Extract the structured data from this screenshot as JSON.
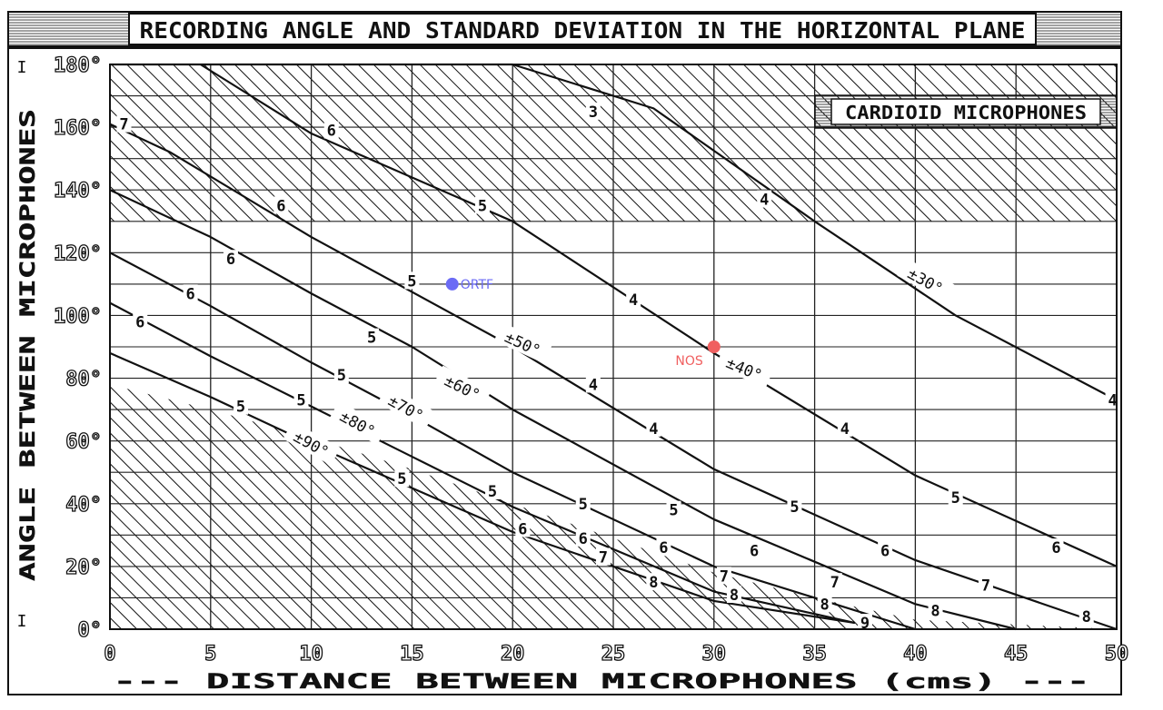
{
  "chart_data": {
    "type": "line",
    "title": "RECORDING ANGLE AND STANDARD DEVIATION IN THE HORIZONTAL PLANE",
    "subtitle": "CARDIOID MICROPHONES",
    "xlabel": "--- DISTANCE BETWEEN MICROPHONES (cms) ---",
    "ylabel": "ANGLE BETWEEN MICROPHONES",
    "xlim": [
      0,
      50
    ],
    "ylim": [
      0,
      180
    ],
    "x_ticks": [
      "0",
      "5",
      "10",
      "15",
      "20",
      "25",
      "30",
      "35",
      "40",
      "45",
      "50"
    ],
    "y_ticks": [
      "0°",
      "20°",
      "40°",
      "60°",
      "80°",
      "100°",
      "120°",
      "140°",
      "160°",
      "180°"
    ],
    "y_side_marks": [
      "I",
      "I"
    ],
    "grid": true,
    "legend_position": "top-right",
    "series": [
      {
        "name": "±30°",
        "x": [
          0,
          17,
          20,
          27,
          35,
          42,
          50
        ],
        "y": [
          180,
          180,
          180,
          166,
          130,
          100,
          73
        ]
      },
      {
        "name": "±40°",
        "x": [
          4.5,
          10,
          20,
          30,
          40,
          50
        ],
        "y": [
          180,
          158,
          130,
          88,
          49,
          20
        ]
      },
      {
        "name": "±50°",
        "x": [
          0,
          3,
          10,
          20,
          30,
          40,
          50
        ],
        "y": [
          161,
          152,
          125,
          90,
          51,
          22,
          0
        ]
      },
      {
        "name": "±60°",
        "x": [
          0,
          5,
          10,
          15,
          20,
          30,
          40,
          45
        ],
        "y": [
          140,
          125,
          107,
          90,
          70,
          35,
          8,
          0
        ]
      },
      {
        "name": "±70°",
        "x": [
          0,
          5,
          10,
          15,
          20,
          30,
          40
        ],
        "y": [
          120,
          103,
          85,
          68,
          50,
          20,
          0
        ]
      },
      {
        "name": "±80°",
        "x": [
          0,
          5,
          10,
          15,
          20,
          30,
          37
        ],
        "y": [
          104,
          87,
          71,
          55,
          39,
          12,
          2
        ]
      },
      {
        "name": "±90°",
        "x": [
          0,
          5,
          10,
          15,
          20,
          30,
          37
        ],
        "y": [
          88,
          74,
          59,
          45,
          31,
          9,
          2
        ]
      }
    ],
    "curve_labels": [
      {
        "text": "±30°",
        "x": 40.5,
        "y": 111,
        "angle": 29
      },
      {
        "text": "±40°",
        "x": 31.5,
        "y": 83,
        "angle": 23
      },
      {
        "text": "±50°",
        "x": 20.5,
        "y": 91,
        "angle": 25
      },
      {
        "text": "±60°",
        "x": 17.5,
        "y": 77,
        "angle": 27
      },
      {
        "text": "±70°",
        "x": 14.7,
        "y": 70.5,
        "angle": 29
      },
      {
        "text": "±80°",
        "x": 12.3,
        "y": 65.5,
        "angle": 29
      },
      {
        "text": "±90°",
        "x": 10,
        "y": 59,
        "angle": 29
      }
    ],
    "deviation_labels": [
      {
        "text": "3",
        "x": 24,
        "y": 165
      },
      {
        "text": "4",
        "x": 32.5,
        "y": 137
      },
      {
        "text": "4",
        "x": 26,
        "y": 105
      },
      {
        "text": "4",
        "x": 24,
        "y": 78
      },
      {
        "text": "4",
        "x": 27,
        "y": 64
      },
      {
        "text": "4",
        "x": 36.5,
        "y": 64
      },
      {
        "text": "4",
        "x": 49.8,
        "y": 73
      },
      {
        "text": "5",
        "x": 18.5,
        "y": 135
      },
      {
        "text": "5",
        "x": 15,
        "y": 111
      },
      {
        "text": "5",
        "x": 13,
        "y": 93
      },
      {
        "text": "5",
        "x": 11.5,
        "y": 81
      },
      {
        "text": "5",
        "x": 9.5,
        "y": 73
      },
      {
        "text": "5",
        "x": 6.5,
        "y": 71
      },
      {
        "text": "5",
        "x": 14.5,
        "y": 48
      },
      {
        "text": "5",
        "x": 19,
        "y": 44
      },
      {
        "text": "5",
        "x": 23.5,
        "y": 40
      },
      {
        "text": "5",
        "x": 28,
        "y": 38
      },
      {
        "text": "5",
        "x": 34,
        "y": 39
      },
      {
        "text": "5",
        "x": 42,
        "y": 42
      },
      {
        "text": "6",
        "x": 11,
        "y": 159
      },
      {
        "text": "6",
        "x": 8.5,
        "y": 135
      },
      {
        "text": "6",
        "x": 6,
        "y": 118
      },
      {
        "text": "6",
        "x": 4,
        "y": 107
      },
      {
        "text": "6",
        "x": 1.5,
        "y": 98
      },
      {
        "text": "6",
        "x": 20.5,
        "y": 32
      },
      {
        "text": "6",
        "x": 23.5,
        "y": 29
      },
      {
        "text": "6",
        "x": 27.5,
        "y": 26
      },
      {
        "text": "6",
        "x": 32,
        "y": 25
      },
      {
        "text": "6",
        "x": 38.5,
        "y": 25
      },
      {
        "text": "6",
        "x": 47,
        "y": 26
      },
      {
        "text": "7",
        "x": 0.7,
        "y": 161
      },
      {
        "text": "7",
        "x": 24.5,
        "y": 23
      },
      {
        "text": "7",
        "x": 30.5,
        "y": 17
      },
      {
        "text": "7",
        "x": 36,
        "y": 15
      },
      {
        "text": "7",
        "x": 43.5,
        "y": 14
      },
      {
        "text": "8",
        "x": 27,
        "y": 15
      },
      {
        "text": "8",
        "x": 31,
        "y": 11
      },
      {
        "text": "8",
        "x": 35.5,
        "y": 8
      },
      {
        "text": "8",
        "x": 41,
        "y": 6
      },
      {
        "text": "8",
        "x": 48.5,
        "y": 4
      },
      {
        "text": "9",
        "x": 37.5,
        "y": 2
      }
    ],
    "hatched_regions": [
      {
        "name": "upper",
        "x": [
          0,
          50
        ],
        "y_from": 130,
        "y_to": 180
      },
      {
        "name": "lower",
        "x": [
          0,
          5,
          10,
          15,
          20,
          25,
          30,
          35,
          40,
          50
        ],
        "y_top": [
          78,
          70,
          61,
          51,
          40,
          29,
          18,
          10,
          3,
          0
        ]
      }
    ],
    "annotations": [
      {
        "text": "ORTF",
        "x": 17,
        "y": 110,
        "color": "#6b6bf5",
        "label_side": "right"
      },
      {
        "text": "NOS",
        "x": 30,
        "y": 90,
        "color": "#f06060",
        "label_side": "left"
      }
    ]
  }
}
